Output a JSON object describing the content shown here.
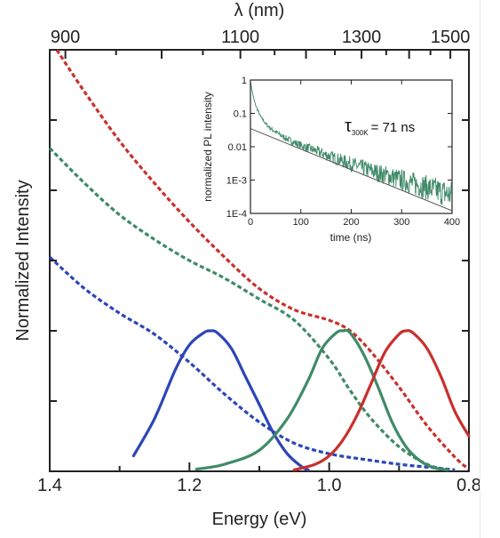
{
  "chart_data": {
    "type": "line",
    "title": "",
    "xlabel": "Energy (eV)",
    "ylabel": "Normalized Intensity",
    "top_xlabel": "λ (nm)",
    "xlim": [
      1.4,
      0.8
    ],
    "x_inverted": true,
    "x_ticks": [
      "1.4",
      "1.2",
      "1.0",
      "0.8"
    ],
    "top_ticks": [
      "900",
      "1100",
      "1300",
      "1500"
    ],
    "top_tick_values_nm": [
      900,
      1100,
      1300,
      1500
    ],
    "ylim": [
      0,
      6
    ],
    "y_tick_labels_shown": false,
    "grid": false,
    "series": [
      {
        "style": "dashed",
        "color": "#c8302d",
        "x": [
          1.39,
          1.35,
          1.3,
          1.25,
          1.2,
          1.15,
          1.1,
          1.05,
          1.0,
          0.97,
          0.94,
          0.9,
          0.86,
          0.82,
          0.8
        ],
        "y": [
          6.0,
          5.4,
          4.7,
          4.1,
          3.55,
          3.05,
          2.6,
          2.3,
          2.15,
          2.0,
          1.7,
          1.2,
          0.65,
          0.2,
          0.03
        ]
      },
      {
        "style": "dashed",
        "color": "#3f8a67",
        "x": [
          1.4,
          1.35,
          1.3,
          1.25,
          1.2,
          1.15,
          1.1,
          1.05,
          1.0,
          0.97,
          0.94,
          0.9,
          0.86,
          0.83
        ],
        "y": [
          4.6,
          4.1,
          3.65,
          3.3,
          3.0,
          2.75,
          2.45,
          2.15,
          1.6,
          1.15,
          0.75,
          0.35,
          0.1,
          0.02
        ]
      },
      {
        "style": "dashed",
        "color": "#2c45b8",
        "x": [
          1.4,
          1.35,
          1.3,
          1.25,
          1.2,
          1.15,
          1.1,
          1.05,
          1.0,
          0.95,
          0.9,
          0.85,
          0.82
        ],
        "y": [
          3.05,
          2.6,
          2.25,
          1.95,
          1.55,
          1.1,
          0.7,
          0.4,
          0.25,
          0.17,
          0.1,
          0.05,
          0.02
        ]
      },
      {
        "style": "solid",
        "color": "#2c45b8",
        "x": [
          1.28,
          1.25,
          1.22,
          1.2,
          1.18,
          1.17,
          1.16,
          1.14,
          1.12,
          1.1,
          1.08,
          1.06,
          1.04,
          1.03
        ],
        "y": [
          0.22,
          0.75,
          1.45,
          1.8,
          1.97,
          2.0,
          1.97,
          1.75,
          1.35,
          0.95,
          0.55,
          0.25,
          0.07,
          0.02
        ]
      },
      {
        "style": "solid",
        "color": "#3f8a67",
        "x": [
          1.19,
          1.15,
          1.1,
          1.06,
          1.03,
          1.01,
          0.99,
          0.98,
          0.97,
          0.95,
          0.93,
          0.91,
          0.89,
          0.87,
          0.85,
          0.83
        ],
        "y": [
          0.03,
          0.1,
          0.3,
          0.75,
          1.3,
          1.75,
          1.97,
          2.0,
          1.97,
          1.65,
          1.2,
          0.7,
          0.35,
          0.15,
          0.05,
          0.02
        ]
      },
      {
        "style": "solid",
        "color": "#c8302d",
        "x": [
          1.05,
          1.02,
          1.0,
          0.98,
          0.96,
          0.94,
          0.92,
          0.9,
          0.89,
          0.88,
          0.86,
          0.84,
          0.82,
          0.8
        ],
        "y": [
          0.02,
          0.1,
          0.22,
          0.45,
          0.8,
          1.25,
          1.7,
          1.95,
          2.0,
          1.97,
          1.75,
          1.35,
          0.85,
          0.5
        ]
      }
    ],
    "inset": {
      "type": "line",
      "xlabel": "time (ns)",
      "ylabel": "normalized PL intensity",
      "xlim": [
        0,
        400
      ],
      "ylim_log10": [
        -4,
        0
      ],
      "y_log": true,
      "x_ticks": [
        "0",
        "100",
        "200",
        "300",
        "400"
      ],
      "x_tick_values": [
        0,
        100,
        200,
        300,
        400
      ],
      "y_ticks": [
        "1",
        "0.1",
        "0.01",
        "1E-3",
        "1E-4"
      ],
      "y_tick_values": [
        1,
        0.1,
        0.01,
        0.001,
        0.0001
      ],
      "annotation_main": "τ",
      "annotation_sub": "300K",
      "annotation_value": "= 71 ns",
      "data_color": "#3f8a67",
      "fit_color": "#555555",
      "decay_x": [
        0,
        5,
        10,
        20,
        30,
        40,
        60,
        80,
        100,
        130,
        160,
        200,
        250,
        300,
        350,
        400
      ],
      "decay_y": [
        0.9,
        0.35,
        0.18,
        0.08,
        0.05,
        0.035,
        0.022,
        0.015,
        0.011,
        0.0075,
        0.005,
        0.003,
        0.0017,
        0.001,
        0.0006,
        0.00035
      ],
      "fit_x": [
        0,
        400
      ],
      "fit_y": [
        0.035,
        0.00012
      ]
    }
  }
}
